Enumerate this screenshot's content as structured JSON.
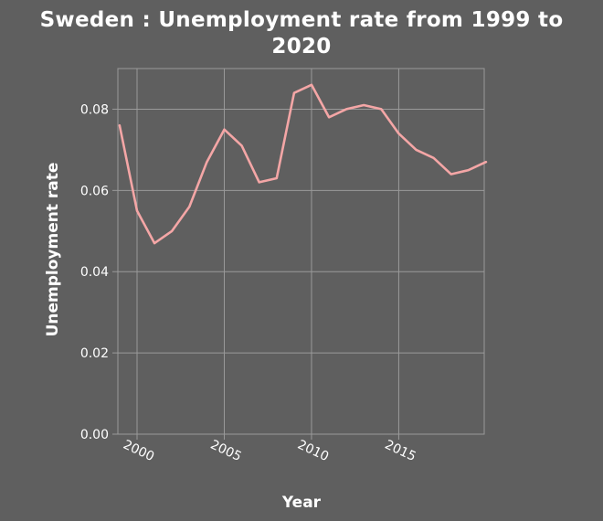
{
  "chart_data": {
    "type": "line",
    "title_line1": "Sweden : Unemployment rate from 1999 to",
    "title_line2": "2020",
    "xlabel": "Year",
    "ylabel": "Unemployment rate",
    "xlim": [
      1998.9,
      2019.9
    ],
    "ylim": [
      0,
      0.09
    ],
    "x_ticks": [
      2000,
      2005,
      2010,
      2015
    ],
    "x_tick_labels": [
      "2000",
      "2005",
      "2010",
      "2015"
    ],
    "y_ticks": [
      0,
      0.02,
      0.04,
      0.06,
      0.08
    ],
    "y_tick_labels": [
      "0.00",
      "0.02",
      "0.04",
      "0.06",
      "0.08"
    ],
    "grid": true,
    "colors": {
      "background": "#5f5f5f",
      "grid": "#9a9a9a",
      "line": "#f4a6a6"
    },
    "series": [
      {
        "x": [
          1999,
          2000,
          2001,
          2002,
          2003,
          2004,
          2005,
          2006,
          2007,
          2008,
          2009,
          2010,
          2011,
          2012,
          2013,
          2014,
          2015,
          2016,
          2017,
          2018,
          2019,
          2020
        ],
        "values": [
          0.076,
          0.055,
          0.047,
          0.05,
          0.056,
          0.067,
          0.075,
          0.071,
          0.062,
          0.063,
          0.084,
          0.086,
          0.078,
          0.08,
          0.081,
          0.08,
          0.074,
          0.07,
          0.068,
          0.064,
          0.065,
          0.067
        ]
      }
    ]
  }
}
